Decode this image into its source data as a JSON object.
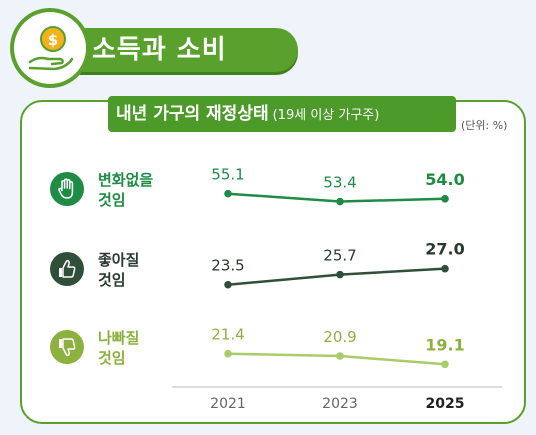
{
  "header": {
    "title": "소득과 소비"
  },
  "chart_data": {
    "type": "line",
    "title": "내년 가구의 재정상태",
    "subtitle": "(19세 이상 가구주)",
    "unit": "(단위: %)",
    "x": [
      "2021",
      "2023",
      "2025"
    ],
    "series": [
      {
        "name": "변화없을 것임",
        "label_lines": [
          "변화없을",
          "것임"
        ],
        "values": [
          55.1,
          53.4,
          54.0
        ],
        "color": "#1e8c44",
        "value_color": "#1e8c44",
        "icon": "hand-palm-icon"
      },
      {
        "name": "좋아질 것임",
        "label_lines": [
          "좋아질",
          "것임"
        ],
        "values": [
          23.5,
          25.7,
          27.0
        ],
        "color": "#2f4f3a",
        "value_color": "#2a3a30",
        "icon": "thumbs-up-icon"
      },
      {
        "name": "나빠질 것임",
        "label_lines": [
          "나빠질",
          "것임"
        ],
        "values": [
          21.4,
          20.9,
          19.1
        ],
        "color": "#a9cc6a",
        "value_color": "#8cb13f",
        "icon": "thumbs-down-icon"
      }
    ],
    "value_labels": [
      [
        "55.1",
        "53.4",
        "54.0"
      ],
      [
        "23.5",
        "25.7",
        "27.0"
      ],
      [
        "21.4",
        "20.9",
        "19.1"
      ]
    ]
  }
}
